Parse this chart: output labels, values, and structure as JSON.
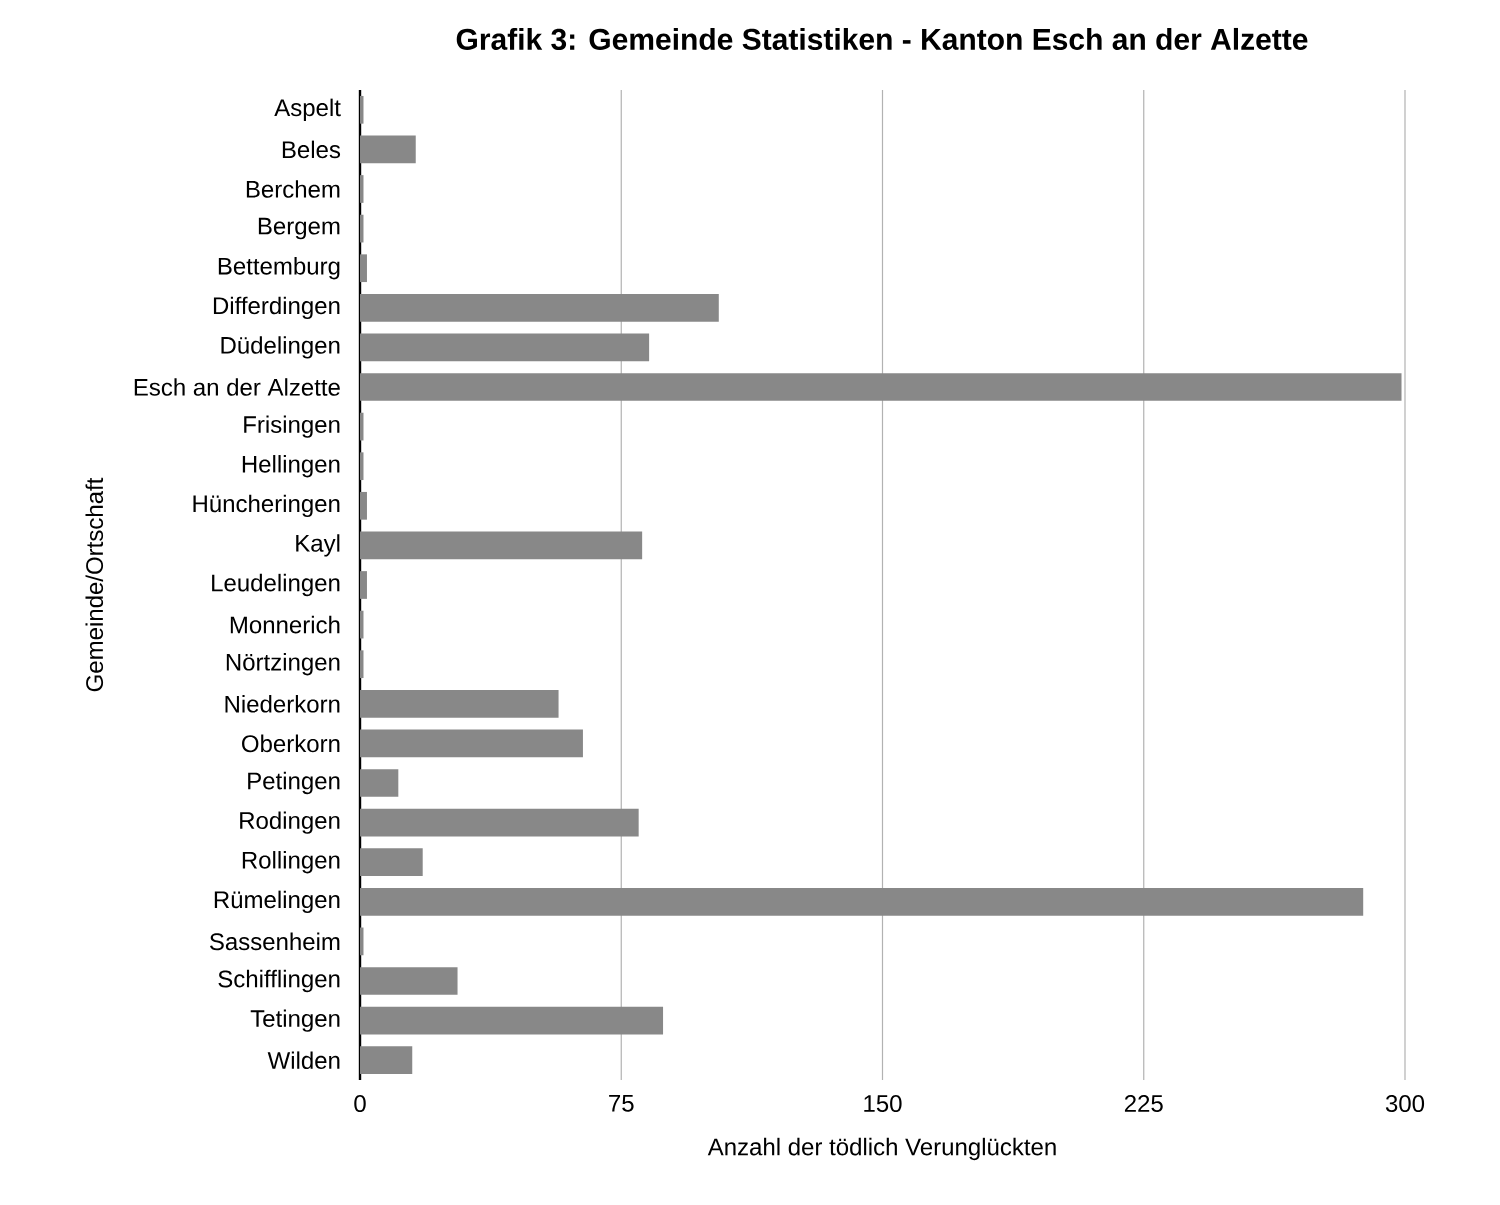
{
  "chart_data": {
    "type": "bar",
    "orientation": "horizontal",
    "title": "Grafik 3: Gemeinde Statistiken - Kanton Esch an der Alzette",
    "xlabel": "Anzahl der tödlich Verunglückten",
    "ylabel": "Gemeinde/Ortschaft",
    "categories": [
      "Aspelt",
      "Beles",
      "Berchem",
      "Bergem",
      "Bettemburg",
      "Differdingen",
      "Düdelingen",
      "Esch an der Alzette",
      "Frisingen",
      "Hellingen",
      "Hüncheringen",
      "Kayl",
      "Leudelingen",
      "Monnerich",
      "Nörtzingen",
      "Niederkorn",
      "Oberkorn",
      "Petingen",
      "Rodingen",
      "Rollingen",
      "Rümelingen",
      "Sassenheim",
      "Schifflingen",
      "Tetingen",
      "Wilden"
    ],
    "values": [
      1,
      16,
      1,
      1,
      2,
      103,
      83,
      299,
      1,
      1,
      2,
      81,
      2,
      1,
      1,
      57,
      64,
      11,
      80,
      18,
      288,
      1,
      28,
      87,
      15
    ],
    "color": "#888888",
    "xlim": [
      0,
      300
    ],
    "xticks": [
      0,
      75,
      150,
      225,
      300
    ],
    "grid": "x"
  }
}
